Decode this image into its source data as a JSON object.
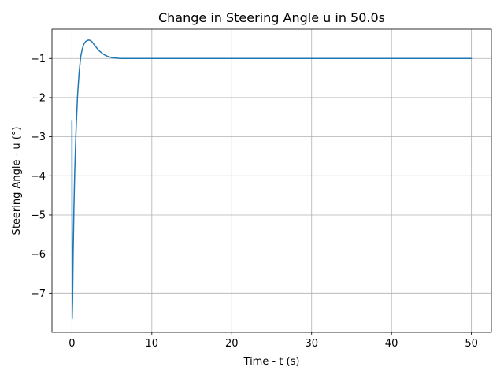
{
  "chart_data": {
    "type": "line",
    "title": "Change in Steering Angle u in 50.0s",
    "xlabel": "Time - t (s)",
    "ylabel": "Steering Angle - u (°)",
    "xlim": [
      -2.5,
      52.5
    ],
    "ylim": [
      -8.0,
      -0.25
    ],
    "xticks": [
      0,
      10,
      20,
      30,
      40,
      50
    ],
    "yticks": [
      -7,
      -6,
      -5,
      -4,
      -3,
      -2,
      -1
    ],
    "ytick_labels": [
      "−7",
      "−6",
      "−5",
      "−4",
      "−3",
      "−2",
      "−1"
    ],
    "grid": true,
    "series": [
      {
        "color": "#1f77b4",
        "x": [
          0,
          0.03,
          0.08,
          0.15,
          0.25,
          0.35,
          0.5,
          0.7,
          0.9,
          1.1,
          1.3,
          1.5,
          1.7,
          1.9,
          2.1,
          2.3,
          2.5,
          2.8,
          3.1,
          3.5,
          4.0,
          4.5,
          5.0,
          5.5,
          6.0,
          7.0,
          8.0,
          10.0,
          15.0,
          20.0,
          30.0,
          40.0,
          50.0
        ],
        "y": [
          -2.6,
          -7.65,
          -7.2,
          -6.0,
          -4.8,
          -3.9,
          -2.9,
          -1.95,
          -1.35,
          -0.95,
          -0.75,
          -0.63,
          -0.57,
          -0.54,
          -0.53,
          -0.54,
          -0.57,
          -0.65,
          -0.73,
          -0.82,
          -0.9,
          -0.95,
          -0.98,
          -0.99,
          -1.0,
          -1.0,
          -1.0,
          -1.0,
          -1.0,
          -1.0,
          -1.0,
          -1.0,
          -1.0
        ]
      }
    ]
  }
}
